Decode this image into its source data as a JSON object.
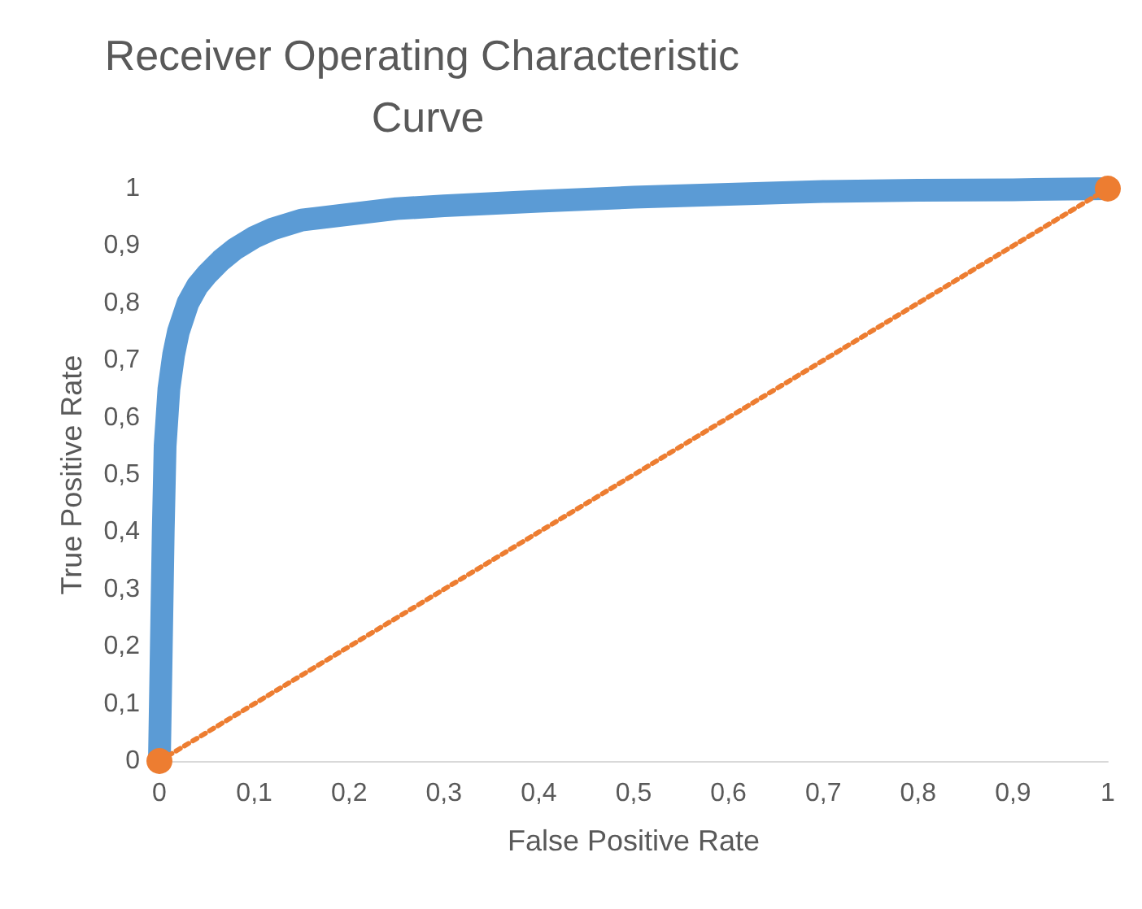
{
  "chart_data": {
    "type": "line",
    "title": "Receiver Operating Characteristic Curve",
    "xlabel": "False Positive Rate",
    "ylabel": "True Positive Rate",
    "xlim": [
      0,
      1
    ],
    "ylim": [
      0,
      1
    ],
    "xticks": [
      0,
      {
        "value": 0.1,
        "label": "0,1"
      },
      {
        "value": 0.2,
        "label": "0,2"
      },
      {
        "value": 0.3,
        "label": "0,3"
      },
      {
        "value": 0.4,
        "label": "0,4"
      },
      {
        "value": 0.5,
        "label": "0,5"
      },
      {
        "value": 0.6,
        "label": "0,6"
      },
      {
        "value": 0.7,
        "label": "0,7"
      },
      {
        "value": 0.8,
        "label": "0,8"
      },
      {
        "value": 0.9,
        "label": "0,9"
      },
      1
    ],
    "yticks": [
      0,
      {
        "value": 0.1,
        "label": "0,1"
      },
      {
        "value": 0.2,
        "label": "0,2"
      },
      {
        "value": 0.3,
        "label": "0,3"
      },
      {
        "value": 0.4,
        "label": "0,4"
      },
      {
        "value": 0.5,
        "label": "0,5"
      },
      {
        "value": 0.6,
        "label": "0,6"
      },
      {
        "value": 0.7,
        "label": "0,7"
      },
      {
        "value": 0.8,
        "label": "0,8"
      },
      {
        "value": 0.9,
        "label": "0,9"
      },
      1
    ],
    "grid": false,
    "series": [
      {
        "color": "#5b9bd5",
        "marker": "none",
        "line_style": "solid",
        "x": [
          0,
          0.002,
          0.004,
          0.006,
          0.01,
          0.015,
          0.02,
          0.03,
          0.04,
          0.05,
          0.065,
          0.08,
          0.1,
          0.12,
          0.15,
          0.2,
          0.25,
          0.3,
          0.4,
          0.5,
          0.6,
          0.7,
          0.8,
          0.9,
          1
        ],
        "values": [
          0,
          0.2,
          0.4,
          0.55,
          0.65,
          0.71,
          0.75,
          0.8,
          0.83,
          0.85,
          0.875,
          0.895,
          0.915,
          0.93,
          0.945,
          0.955,
          0.965,
          0.97,
          0.978,
          0.985,
          0.99,
          0.995,
          0.997,
          0.998,
          1
        ]
      },
      {
        "color": "#ed7d31",
        "marker": "circle",
        "line_style": "dotted",
        "x": [
          0,
          1
        ],
        "values": [
          0,
          1
        ]
      }
    ]
  }
}
